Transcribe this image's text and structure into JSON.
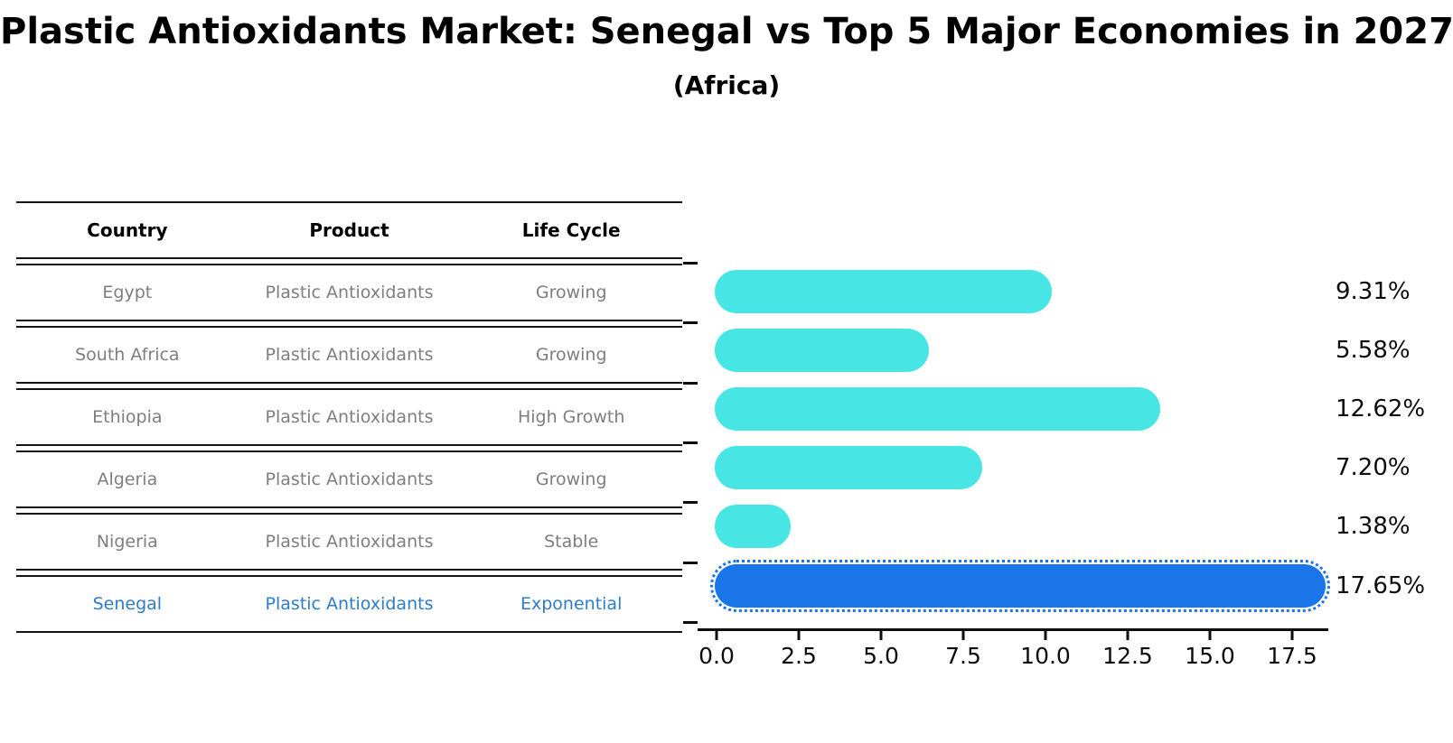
{
  "title": "Plastic Antioxidants Market: Senegal vs Top 5 Major Economies in 2027",
  "subtitle": "(Africa)",
  "table": {
    "headers": [
      "Country",
      "Product",
      "Life Cycle"
    ],
    "rows": [
      {
        "country": "Egypt",
        "product": "Plastic Antioxidants",
        "life_cycle": "Growing",
        "highlight": false
      },
      {
        "country": "South Africa",
        "product": "Plastic Antioxidants",
        "life_cycle": "Growing",
        "highlight": false
      },
      {
        "country": "Ethiopia",
        "product": "Plastic Antioxidants",
        "life_cycle": "High Growth",
        "highlight": false
      },
      {
        "country": "Algeria",
        "product": "Plastic Antioxidants",
        "life_cycle": "Growing",
        "highlight": false
      },
      {
        "country": "Nigeria",
        "product": "Plastic Antioxidants",
        "life_cycle": "Stable",
        "highlight": false
      },
      {
        "country": "Senegal",
        "product": "Plastic Antioxidants",
        "life_cycle": "Exponential",
        "highlight": true
      }
    ]
  },
  "chart_data": {
    "type": "bar",
    "orientation": "horizontal",
    "title": "Plastic Antioxidants Market: Senegal vs Top 5 Major Economies in 2027",
    "subtitle": "(Africa)",
    "categories": [
      "Egypt",
      "South Africa",
      "Ethiopia",
      "Algeria",
      "Nigeria",
      "Senegal"
    ],
    "values": [
      9.31,
      5.58,
      12.62,
      7.2,
      1.38,
      17.65
    ],
    "value_labels": [
      "9.31%",
      "5.58%",
      "12.62%",
      "7.20%",
      "1.38%",
      "17.65%"
    ],
    "highlight_index": 5,
    "xlabel": "",
    "ylabel": "",
    "xlim": [
      0,
      18.6
    ],
    "xticks": [
      0.0,
      2.5,
      5.0,
      7.5,
      10.0,
      12.5,
      15.0,
      17.5
    ],
    "xtick_labels": [
      "0.0",
      "2.5",
      "5.0",
      "7.5",
      "10.0",
      "12.5",
      "15.0",
      "17.5"
    ],
    "grid": false,
    "legend": false
  },
  "colors": {
    "bar": "#47e5e4",
    "highlight_bar": "#1a76e8",
    "highlight_text": "#2e7cc9",
    "table_text": "#7e7e7e",
    "header_text": "#000000",
    "axis": "#0d0d0d"
  }
}
